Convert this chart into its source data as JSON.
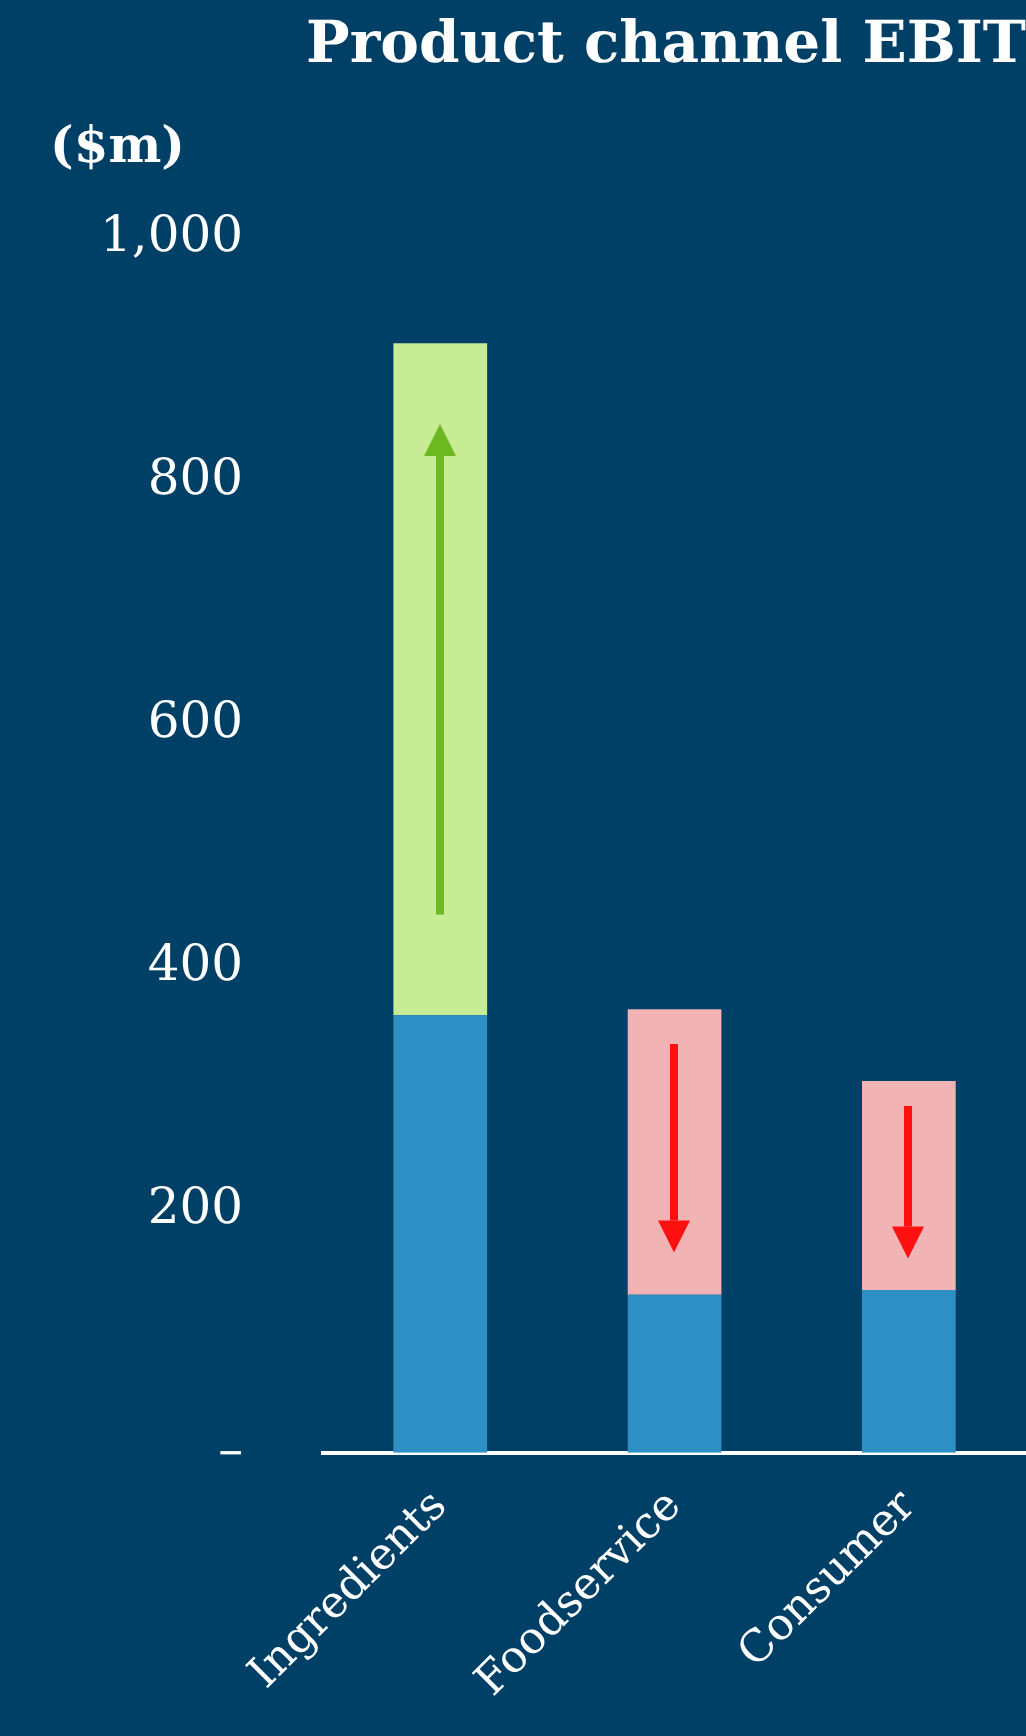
{
  "chart_data": {
    "type": "bar",
    "title": "Product channel EBIT",
    "ylabel": "($m)",
    "stacked": true,
    "categories": [
      "Ingredients",
      "Foodservice",
      "Consumer"
    ],
    "series": [
      {
        "color": "#2e8fc4",
        "values": [
          360,
          130,
          134
        ]
      },
      {
        "colors": [
          "#c8ec96",
          "#f2b3b5",
          "#f2b3b5"
        ],
        "values": [
          553,
          235,
          172
        ]
      }
    ],
    "ylim": [
      0,
      1000
    ],
    "yticks": [
      {
        "value": 0,
        "label": "–"
      },
      200,
      400,
      600,
      800,
      {
        "value": 1000,
        "label": "1,000"
      }
    ],
    "grid": false,
    "legend": false
  }
}
